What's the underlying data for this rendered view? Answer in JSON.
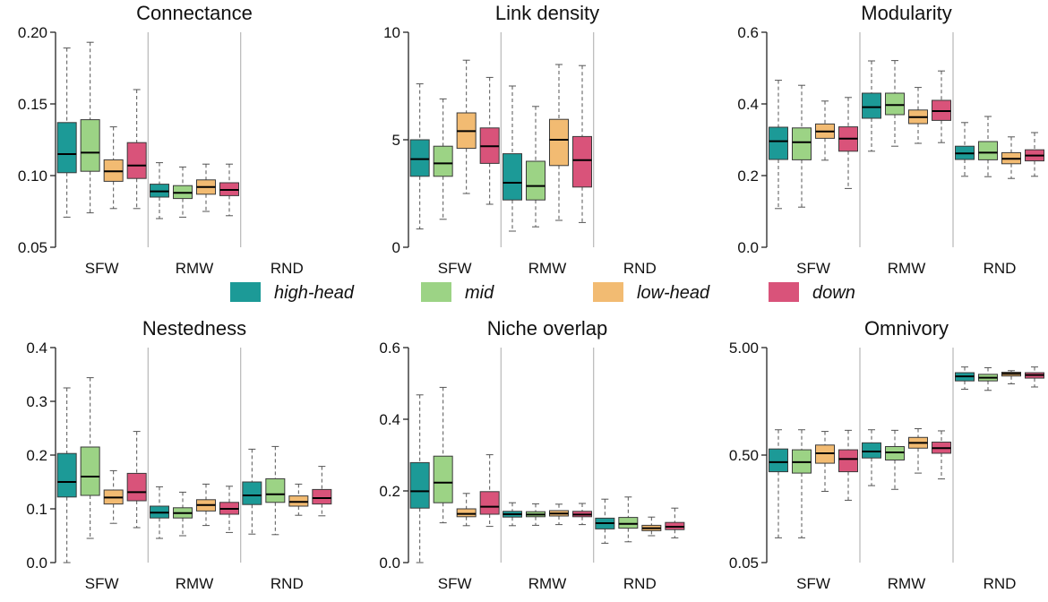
{
  "legend": [
    {
      "label": "high-head",
      "color": "#1c9a97"
    },
    {
      "label": "mid",
      "color": "#9cd385"
    },
    {
      "label": "low-head",
      "color": "#f2bb72"
    },
    {
      "label": "down",
      "color": "#d9537a"
    }
  ],
  "chart_data": [
    {
      "type": "boxplot",
      "title": "Connectance",
      "scale": "linear",
      "ylim": [
        0.05,
        0.2
      ],
      "yticks": [
        "0.05",
        "0.10",
        "0.15",
        "0.20"
      ],
      "ytick_values": [
        0.05,
        0.1,
        0.15,
        0.2
      ],
      "categories": [
        "SFW",
        "RMW",
        "RND"
      ],
      "series_names": [
        "high-head",
        "mid",
        "low-head",
        "down"
      ],
      "boxes": [
        [
          [
            0.071,
            0.102,
            0.115,
            0.137,
            0.189
          ],
          [
            0.074,
            0.103,
            0.116,
            0.139,
            0.193
          ],
          [
            0.077,
            0.096,
            0.103,
            0.111,
            0.134
          ],
          [
            0.077,
            0.098,
            0.107,
            0.123,
            0.16
          ]
        ],
        [
          [
            0.07,
            0.085,
            0.089,
            0.094,
            0.109
          ],
          [
            0.071,
            0.084,
            0.088,
            0.093,
            0.106
          ],
          [
            0.075,
            0.087,
            0.092,
            0.097,
            0.108
          ],
          [
            0.072,
            0.086,
            0.09,
            0.095,
            0.108
          ]
        ],
        []
      ]
    },
    {
      "type": "boxplot",
      "title": "Link density",
      "scale": "linear",
      "ylim": [
        0,
        10
      ],
      "yticks": [
        "0",
        "5",
        "10"
      ],
      "ytick_values": [
        0,
        5,
        10
      ],
      "categories": [
        "SFW",
        "RMW",
        "RND"
      ],
      "series_names": [
        "high-head",
        "mid",
        "low-head",
        "down"
      ],
      "boxes": [
        [
          [
            0.85,
            3.3,
            4.1,
            5.0,
            7.6
          ],
          [
            1.3,
            3.3,
            3.9,
            4.7,
            6.9
          ],
          [
            2.5,
            4.6,
            5.4,
            6.25,
            8.7
          ],
          [
            2.0,
            3.9,
            4.7,
            5.55,
            7.9
          ]
        ],
        [
          [
            0.75,
            2.2,
            3.0,
            4.35,
            7.5
          ],
          [
            0.95,
            2.2,
            2.85,
            4.0,
            6.55
          ],
          [
            1.25,
            3.8,
            5.0,
            5.95,
            8.5
          ],
          [
            1.15,
            2.8,
            4.05,
            5.15,
            8.45
          ]
        ],
        []
      ]
    },
    {
      "type": "boxplot",
      "title": "Modularity",
      "scale": "linear",
      "ylim": [
        0,
        0.6
      ],
      "yticks": [
        "0.0",
        "0.2",
        "0.4",
        "0.6"
      ],
      "ytick_values": [
        0.0,
        0.2,
        0.4,
        0.6
      ],
      "categories": [
        "SFW",
        "RMW",
        "RND"
      ],
      "series_names": [
        "high-head",
        "mid",
        "low-head",
        "down"
      ],
      "boxes": [
        [
          [
            0.108,
            0.245,
            0.296,
            0.335,
            0.466
          ],
          [
            0.112,
            0.244,
            0.293,
            0.333,
            0.452
          ],
          [
            0.243,
            0.304,
            0.323,
            0.344,
            0.408
          ],
          [
            0.164,
            0.268,
            0.303,
            0.336,
            0.418
          ]
        ],
        [
          [
            0.268,
            0.36,
            0.391,
            0.43,
            0.52
          ],
          [
            0.282,
            0.37,
            0.397,
            0.43,
            0.521
          ],
          [
            0.29,
            0.345,
            0.363,
            0.383,
            0.446
          ],
          [
            0.292,
            0.354,
            0.38,
            0.41,
            0.492
          ]
        ],
        [
          [
            0.198,
            0.245,
            0.262,
            0.282,
            0.348
          ],
          [
            0.197,
            0.244,
            0.264,
            0.295,
            0.365
          ],
          [
            0.192,
            0.233,
            0.247,
            0.264,
            0.308
          ],
          [
            0.198,
            0.241,
            0.256,
            0.272,
            0.32
          ]
        ]
      ]
    },
    {
      "type": "boxplot",
      "title": "Nestedness",
      "scale": "linear",
      "ylim": [
        0,
        0.4
      ],
      "yticks": [
        "0.0",
        "0.1",
        "0.2",
        "0.3",
        "0.4"
      ],
      "ytick_values": [
        0.0,
        0.1,
        0.2,
        0.3,
        0.4
      ],
      "categories": [
        "SFW",
        "RMW",
        "RND"
      ],
      "series_names": [
        "high-head",
        "mid",
        "low-head",
        "down"
      ],
      "boxes": [
        [
          [
            0.0,
            0.122,
            0.15,
            0.203,
            0.325
          ],
          [
            0.045,
            0.125,
            0.16,
            0.215,
            0.344
          ],
          [
            0.073,
            0.109,
            0.121,
            0.135,
            0.171
          ],
          [
            0.065,
            0.115,
            0.131,
            0.166,
            0.244
          ]
        ],
        [
          [
            0.045,
            0.083,
            0.093,
            0.105,
            0.141
          ],
          [
            0.05,
            0.083,
            0.092,
            0.102,
            0.131
          ],
          [
            0.069,
            0.096,
            0.107,
            0.117,
            0.146
          ],
          [
            0.056,
            0.09,
            0.1,
            0.112,
            0.142
          ]
        ],
        [
          [
            0.053,
            0.108,
            0.125,
            0.15,
            0.211
          ],
          [
            0.052,
            0.112,
            0.127,
            0.156,
            0.216
          ],
          [
            0.088,
            0.105,
            0.113,
            0.124,
            0.146
          ],
          [
            0.087,
            0.109,
            0.12,
            0.136,
            0.179
          ]
        ]
      ]
    },
    {
      "type": "boxplot",
      "title": "Niche overlap",
      "scale": "linear",
      "ylim": [
        0,
        0.6
      ],
      "yticks": [
        "0.0",
        "0.2",
        "0.4",
        "0.6"
      ],
      "ytick_values": [
        0.0,
        0.2,
        0.4,
        0.6
      ],
      "categories": [
        "SFW",
        "RMW",
        "RND"
      ],
      "series_names": [
        "high-head",
        "mid",
        "low-head",
        "down"
      ],
      "boxes": [
        [
          [
            0.0,
            0.152,
            0.199,
            0.279,
            0.468
          ],
          [
            0.111,
            0.167,
            0.223,
            0.297,
            0.489
          ],
          [
            0.103,
            0.128,
            0.136,
            0.15,
            0.193
          ],
          [
            0.101,
            0.135,
            0.156,
            0.198,
            0.301
          ]
        ],
        [
          [
            0.103,
            0.127,
            0.135,
            0.143,
            0.167
          ],
          [
            0.104,
            0.128,
            0.134,
            0.142,
            0.164
          ],
          [
            0.106,
            0.13,
            0.137,
            0.145,
            0.163
          ],
          [
            0.106,
            0.128,
            0.134,
            0.143,
            0.165
          ]
        ],
        [
          [
            0.054,
            0.094,
            0.11,
            0.124,
            0.177
          ],
          [
            0.058,
            0.096,
            0.108,
            0.126,
            0.183
          ],
          [
            0.075,
            0.089,
            0.096,
            0.104,
            0.127
          ],
          [
            0.069,
            0.092,
            0.1,
            0.112,
            0.152
          ]
        ]
      ]
    },
    {
      "type": "boxplot",
      "title": "Omnivory",
      "scale": "log",
      "ylim": [
        0.05,
        5.0
      ],
      "yticks": [
        "0.05",
        "0.50",
        "5.00"
      ],
      "ytick_values": [
        0.05,
        0.5,
        5.0
      ],
      "categories": [
        "SFW",
        "RMW",
        "RND"
      ],
      "series_names": [
        "high-head",
        "mid",
        "low-head",
        "down"
      ],
      "boxes": [
        [
          [
            0.085,
            0.35,
            0.43,
            0.57,
            0.86
          ],
          [
            0.085,
            0.34,
            0.43,
            0.56,
            0.86
          ],
          [
            0.23,
            0.42,
            0.52,
            0.62,
            0.83
          ],
          [
            0.19,
            0.35,
            0.46,
            0.56,
            0.85
          ]
        ],
        [
          [
            0.26,
            0.47,
            0.54,
            0.65,
            0.86
          ],
          [
            0.24,
            0.45,
            0.53,
            0.6,
            0.85
          ],
          [
            0.34,
            0.58,
            0.65,
            0.73,
            0.88
          ],
          [
            0.3,
            0.52,
            0.58,
            0.66,
            0.84
          ]
        ],
        [
          [
            2.05,
            2.45,
            2.7,
            2.92,
            3.3
          ],
          [
            2.0,
            2.45,
            2.62,
            2.82,
            3.25
          ],
          [
            2.3,
            2.72,
            2.85,
            2.95,
            3.05
          ],
          [
            2.15,
            2.6,
            2.78,
            2.92,
            3.3
          ]
        ]
      ]
    }
  ]
}
